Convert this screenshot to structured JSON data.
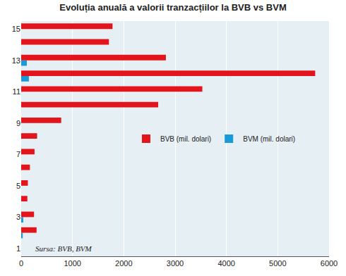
{
  "chart_data": {
    "type": "bar",
    "orientation": "horizontal",
    "title": "Evoluția anuală a valorii tranzacțiilor la BVB vs BVM",
    "source": "Sursa: BVB, BVM",
    "categories": [
      "1",
      null,
      "3",
      null,
      "5",
      null,
      "7",
      null,
      "9",
      null,
      "11",
      null,
      "13",
      null,
      "15"
    ],
    "series": [
      {
        "name": "BVB (mil. dolari)",
        "color": "#e3141b",
        "values": [
          null,
          300,
          250,
          120,
          130,
          170,
          260,
          310,
          780,
          2670,
          3530,
          5730,
          2820,
          1710,
          1780
        ]
      },
      {
        "name": "BVM (mil. dolari)",
        "color": "#1a9ad6",
        "values": [
          null,
          30,
          40,
          null,
          null,
          null,
          null,
          null,
          null,
          null,
          null,
          150,
          110,
          null,
          null
        ]
      }
    ],
    "xlim": [
      0,
      6000
    ],
    "xticks": [
      0,
      1000,
      2000,
      3000,
      4000,
      5000,
      6000
    ],
    "grid": true,
    "legend": "center"
  }
}
